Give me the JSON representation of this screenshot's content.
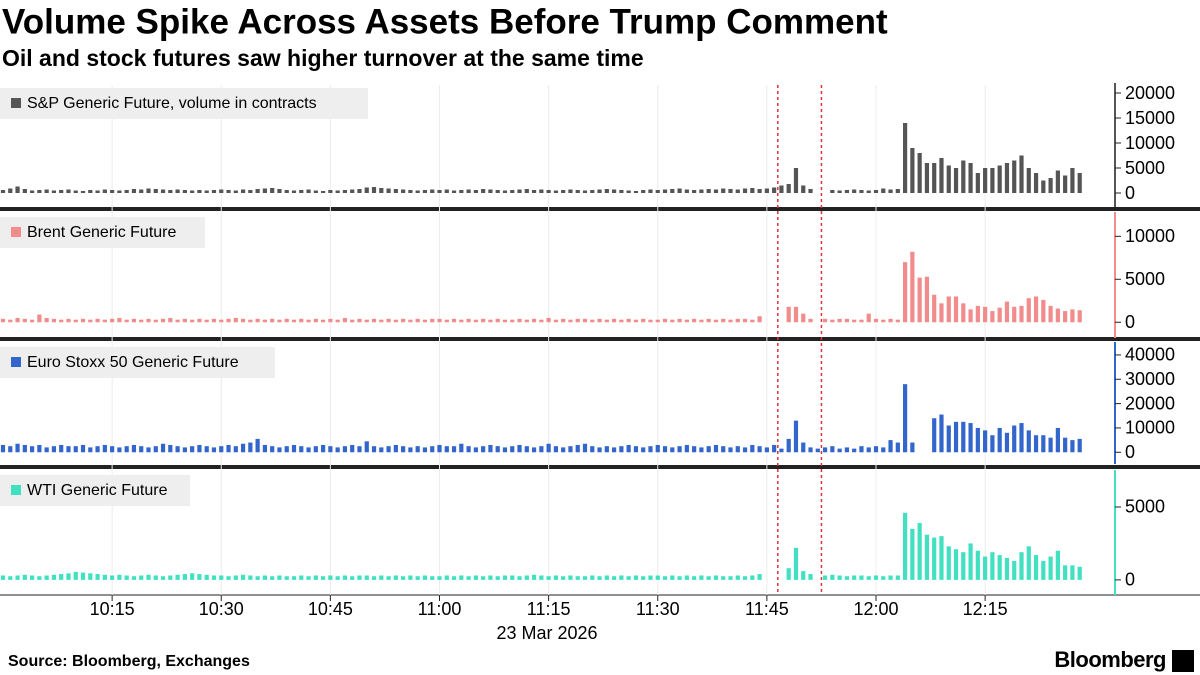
{
  "chart_data": {
    "type": "bar",
    "title": "Volume Spike Across Assets Before Trump Comment",
    "subtitle": "Oil and stock futures saw higher turnover at the same time",
    "source": "Source: Bloomberg, Exchanges",
    "logo": "Bloomberg",
    "xlabel": "23 Mar 2026",
    "x": [
      "10:00",
      "10:01",
      "10:02",
      "10:03",
      "10:04",
      "10:05",
      "10:06",
      "10:07",
      "10:08",
      "10:09",
      "10:10",
      "10:11",
      "10:12",
      "10:13",
      "10:14",
      "10:15",
      "10:16",
      "10:17",
      "10:18",
      "10:19",
      "10:20",
      "10:21",
      "10:22",
      "10:23",
      "10:24",
      "10:25",
      "10:26",
      "10:27",
      "10:28",
      "10:29",
      "10:30",
      "10:31",
      "10:32",
      "10:33",
      "10:34",
      "10:35",
      "10:36",
      "10:37",
      "10:38",
      "10:39",
      "10:40",
      "10:41",
      "10:42",
      "10:43",
      "10:44",
      "10:45",
      "10:46",
      "10:47",
      "10:48",
      "10:49",
      "10:50",
      "10:51",
      "10:52",
      "10:53",
      "10:54",
      "10:55",
      "10:56",
      "10:57",
      "10:58",
      "10:59",
      "11:00",
      "11:01",
      "11:02",
      "11:03",
      "11:04",
      "11:05",
      "11:06",
      "11:07",
      "11:08",
      "11:09",
      "11:10",
      "11:11",
      "11:12",
      "11:13",
      "11:14",
      "11:15",
      "11:16",
      "11:17",
      "11:18",
      "11:19",
      "11:20",
      "11:21",
      "11:22",
      "11:23",
      "11:24",
      "11:25",
      "11:26",
      "11:27",
      "11:28",
      "11:29",
      "11:30",
      "11:31",
      "11:32",
      "11:33",
      "11:34",
      "11:35",
      "11:36",
      "11:37",
      "11:38",
      "11:39",
      "11:40",
      "11:41",
      "11:42",
      "11:43",
      "11:44",
      "11:45",
      "11:46",
      "11:47",
      "11:48",
      "11:49",
      "11:50",
      "11:51",
      "11:52",
      "11:53",
      "11:54",
      "11:55",
      "11:56",
      "11:57",
      "11:58",
      "11:59",
      "12:00",
      "12:01",
      "12:02",
      "12:03",
      "12:04",
      "12:05",
      "12:06",
      "12:07",
      "12:08",
      "12:09",
      "12:10",
      "12:11",
      "12:12",
      "12:13",
      "12:14",
      "12:15",
      "12:16",
      "12:17",
      "12:18",
      "12:19",
      "12:20",
      "12:21",
      "12:22",
      "12:23",
      "12:24",
      "12:25",
      "12:26",
      "12:27",
      "12:28"
    ],
    "xticks": [
      "10:15",
      "10:30",
      "10:45",
      "11:00",
      "11:15",
      "11:30",
      "11:45",
      "12:00",
      "12:15"
    ],
    "markers": [
      "11:47",
      "11:53"
    ],
    "series": [
      {
        "name": "S&P Generic Future, volume in contracts",
        "color": "#555555",
        "ylim": [
          -2400,
          21600
        ],
        "yticks": [
          0,
          5000,
          10000,
          15000,
          20000
        ],
        "values": [
          600,
          900,
          1300,
          800,
          500,
          600,
          700,
          500,
          600,
          700,
          500,
          400,
          600,
          500,
          700,
          600,
          500,
          600,
          800,
          700,
          900,
          800,
          700,
          600,
          700,
          600,
          500,
          600,
          500,
          600,
          700,
          600,
          500,
          700,
          600,
          800,
          900,
          1000,
          800,
          600,
          500,
          600,
          700,
          500,
          400,
          600,
          500,
          600,
          700,
          800,
          1100,
          1200,
          1000,
          900,
          800,
          700,
          600,
          500,
          600,
          700,
          600,
          700,
          500,
          600,
          700,
          600,
          800,
          700,
          600,
          500,
          600,
          700,
          800,
          600,
          700,
          600,
          500,
          600,
          700,
          600,
          500,
          600,
          700,
          800,
          700,
          600,
          500,
          400,
          600,
          700,
          600,
          700,
          800,
          900,
          700,
          600,
          700,
          800,
          700,
          900,
          800,
          700,
          900,
          1000,
          800,
          900,
          1100,
          1500,
          1800,
          5000,
          1500,
          800,
          null,
          null,
          600,
          500,
          600,
          700,
          600,
          500,
          600,
          900,
          700,
          800,
          14000,
          9000,
          8000,
          6000,
          6000,
          7000,
          5500,
          5000,
          6500,
          6000,
          4000,
          5000,
          5000,
          5500,
          6000,
          6500,
          7500,
          5000,
          4000,
          2500,
          3000,
          4500,
          3500,
          5000,
          4000
        ]
      },
      {
        "name": "Brent Generic Future",
        "color": "#f28b8b",
        "ylim": [
          -1600,
          12600
        ],
        "yticks": [
          0,
          5000,
          10000
        ],
        "values": [
          400,
          300,
          500,
          400,
          300,
          900,
          500,
          400,
          300,
          400,
          300,
          400,
          300,
          400,
          300,
          400,
          500,
          300,
          400,
          300,
          400,
          300,
          400,
          500,
          300,
          400,
          300,
          400,
          300,
          400,
          300,
          400,
          500,
          400,
          300,
          400,
          300,
          400,
          300,
          400,
          300,
          400,
          300,
          400,
          300,
          400,
          300,
          500,
          300,
          400,
          300,
          400,
          300,
          400,
          300,
          400,
          300,
          400,
          300,
          400,
          400,
          300,
          400,
          300,
          400,
          300,
          400,
          300,
          400,
          300,
          300,
          400,
          300,
          400,
          300,
          500,
          300,
          400,
          300,
          400,
          400,
          300,
          400,
          300,
          400,
          300,
          400,
          300,
          400,
          300,
          300,
          400,
          300,
          400,
          300,
          400,
          300,
          400,
          300,
          400,
          300,
          400,
          400,
          300,
          700,
          null,
          null,
          null,
          1800,
          1800,
          1000,
          400,
          null,
          400,
          300,
          400,
          400,
          300,
          300,
          1000,
          400,
          300,
          400,
          300,
          7000,
          8200,
          5200,
          5300,
          3200,
          2200,
          3000,
          3000,
          2200,
          1500,
          1900,
          1800,
          1300,
          1700,
          2400,
          1800,
          1900,
          2800,
          3000,
          2600,
          1900,
          1600,
          1300,
          1500,
          1400
        ]
      },
      {
        "name": "Euro Stoxx 50 Generic Future",
        "color": "#3366cc",
        "ylim": [
          -4000,
          44500
        ],
        "yticks": [
          0,
          10000,
          20000,
          30000,
          40000
        ],
        "values": [
          3000,
          2500,
          3500,
          3000,
          2500,
          3000,
          2000,
          2500,
          3000,
          2500,
          2500,
          3000,
          2000,
          2500,
          3000,
          2500,
          2000,
          2500,
          3000,
          2500,
          2000,
          2500,
          3500,
          3000,
          2500,
          2000,
          2500,
          3000,
          2500,
          2000,
          2500,
          3000,
          2500,
          3500,
          4000,
          5500,
          3000,
          2500,
          2000,
          2500,
          3000,
          2500,
          2000,
          2500,
          3000,
          2500,
          2000,
          2500,
          3000,
          2500,
          4500,
          2500,
          2000,
          2500,
          3000,
          2500,
          2000,
          2500,
          2000,
          2500,
          3000,
          2500,
          2500,
          3500,
          2500,
          2000,
          2500,
          3000,
          2500,
          2000,
          2500,
          3000,
          2500,
          2000,
          2500,
          3500,
          2500,
          2000,
          2500,
          3000,
          3500,
          2500,
          2000,
          2500,
          2000,
          2500,
          3000,
          2500,
          2000,
          2500,
          3000,
          2500,
          2000,
          2500,
          3000,
          2500,
          2000,
          2500,
          3000,
          2500,
          2000,
          2500,
          2000,
          3000,
          2500,
          2000,
          3000,
          1500,
          5500,
          13000,
          4000,
          2000,
          1500,
          2000,
          2500,
          1500,
          2000,
          1500,
          2500,
          2000,
          2500,
          2000,
          5000,
          4000,
          28000,
          4000,
          null,
          null,
          14000,
          15500,
          11000,
          12500,
          12500,
          12000,
          10000,
          9000,
          7000,
          10000,
          8000,
          11000,
          12000,
          9000,
          7000,
          7000,
          6000,
          10000,
          6000,
          5000,
          5500
        ]
      },
      {
        "name": "WTI Generic Future",
        "color": "#40e0c0",
        "ylim": [
          -900,
          7400
        ],
        "yticks": [
          0,
          5000
        ],
        "values": [
          300,
          250,
          300,
          350,
          300,
          250,
          300,
          350,
          400,
          450,
          550,
          500,
          450,
          400,
          350,
          300,
          350,
          300,
          250,
          300,
          350,
          300,
          250,
          300,
          350,
          400,
          450,
          400,
          350,
          300,
          300,
          250,
          300,
          350,
          300,
          250,
          300,
          250,
          300,
          250,
          250,
          300,
          250,
          300,
          250,
          300,
          250,
          300,
          250,
          300,
          300,
          250,
          300,
          250,
          300,
          250,
          300,
          250,
          300,
          250,
          250,
          300,
          250,
          300,
          250,
          300,
          250,
          300,
          250,
          300,
          300,
          250,
          300,
          350,
          300,
          250,
          300,
          250,
          300,
          250,
          250,
          300,
          250,
          300,
          250,
          300,
          250,
          300,
          250,
          300,
          300,
          250,
          300,
          250,
          300,
          250,
          300,
          250,
          300,
          250,
          250,
          300,
          250,
          300,
          400,
          null,
          null,
          null,
          800,
          2200,
          600,
          400,
          null,
          300,
          350,
          300,
          250,
          300,
          300,
          250,
          300,
          250,
          300,
          300,
          4600,
          3500,
          3900,
          3100,
          2900,
          3000,
          2300,
          2100,
          1900,
          2500,
          2000,
          1600,
          1900,
          1700,
          1500,
          1300,
          1900,
          2300,
          1700,
          1300,
          1600,
          2000,
          1000,
          1000,
          900
        ]
      }
    ]
  }
}
